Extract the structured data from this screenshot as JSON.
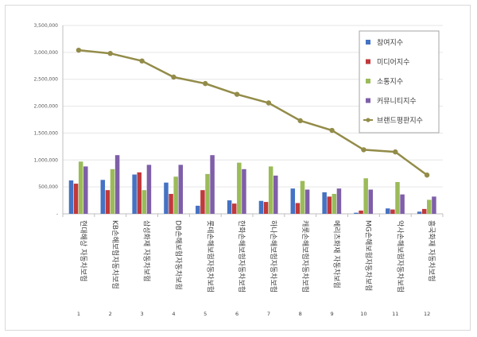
{
  "chart_data": {
    "type": "bar",
    "title": "",
    "xlabel": "",
    "ylabel": "",
    "ylim": [
      0,
      3500000
    ],
    "yticks": [
      0,
      500000,
      1000000,
      1500000,
      2000000,
      2500000,
      3000000,
      3500000
    ],
    "ytick_labels": [
      "-",
      "500,000",
      "1,000,000",
      "1,500,000",
      "2,000,000",
      "2,500,000",
      "3,000,000",
      "3,500,000"
    ],
    "grid": true,
    "legend_position": "top-right",
    "categories": [
      "현대해상 자동차보험",
      "KB손해보험자동차보험",
      "삼성화재 자동차보험",
      "DB손해보험자동차보험",
      "롯데손해보험자동차보험",
      "한화손해보험자동차보험",
      "하나손해보험자동차보험",
      "캐롯손해보험자동차보험",
      "메리츠화재 자동차보험",
      "MG손해보험자동차보험",
      "악사손해보험자동차보험",
      "흥국화재 자동차보험"
    ],
    "ranks": [
      "1",
      "2",
      "3",
      "4",
      "5",
      "6",
      "7",
      "8",
      "9",
      "10",
      "11",
      "12"
    ],
    "series": [
      {
        "name": "참여지수",
        "type": "bar",
        "color": "#4472c4",
        "values": [
          620000,
          630000,
          730000,
          580000,
          150000,
          250000,
          240000,
          470000,
          400000,
          20000,
          100000,
          40000
        ]
      },
      {
        "name": "미디어지수",
        "type": "bar",
        "color": "#c0393b",
        "values": [
          560000,
          440000,
          770000,
          370000,
          440000,
          190000,
          220000,
          200000,
          320000,
          60000,
          80000,
          90000
        ]
      },
      {
        "name": "소통지수",
        "type": "bar",
        "color": "#9bbb59",
        "values": [
          970000,
          830000,
          440000,
          690000,
          740000,
          950000,
          880000,
          610000,
          370000,
          660000,
          590000,
          260000
        ]
      },
      {
        "name": "커뮤니티지수",
        "type": "bar",
        "color": "#7f5fa8",
        "values": [
          880000,
          1090000,
          910000,
          910000,
          1090000,
          830000,
          710000,
          450000,
          470000,
          450000,
          360000,
          320000
        ]
      },
      {
        "name": "브랜드평판지수",
        "type": "line",
        "color": "#938c49",
        "values": [
          3040000,
          2980000,
          2840000,
          2540000,
          2420000,
          2220000,
          2060000,
          1730000,
          1550000,
          1190000,
          1150000,
          720000
        ]
      }
    ]
  }
}
